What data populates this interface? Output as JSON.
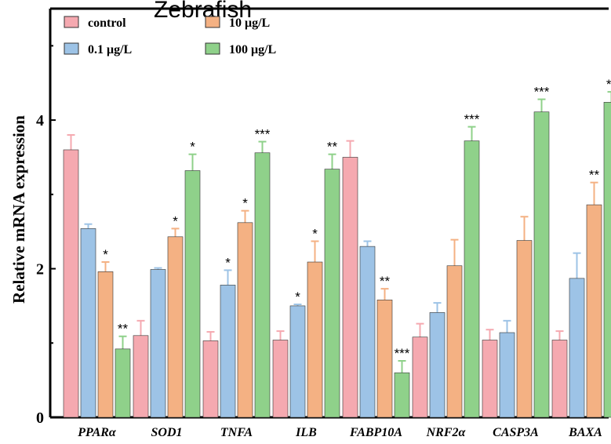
{
  "chart_data": {
    "type": "bar",
    "title": "Zebrafish",
    "ylabel": "Relative mRNA expression",
    "xlabel": "",
    "ylim": [
      0,
      5.5
    ],
    "yticks": [
      0,
      2,
      4
    ],
    "ytick_labels": [
      "0",
      "2",
      "4"
    ],
    "categories": [
      "PPARα",
      "SOD1",
      "TNFA",
      "ILB",
      "FABP10A",
      "NRF2α",
      "CASP3A",
      "BAXA"
    ],
    "series": [
      {
        "name": "control",
        "color": "#F5A9B0",
        "values": [
          3.6,
          1.1,
          1.03,
          1.04,
          3.5,
          1.08,
          1.04,
          1.04
        ],
        "errors": [
          0.2,
          0.2,
          0.12,
          0.12,
          0.22,
          0.18,
          0.14,
          0.12
        ],
        "sig": [
          "",
          "",
          "",
          "",
          "",
          "",
          "",
          ""
        ]
      },
      {
        "name": "0.1 μg/L",
        "color": "#9DC3E6",
        "values": [
          2.54,
          1.99,
          1.78,
          1.5,
          2.3,
          1.41,
          1.14,
          1.87
        ],
        "errors": [
          0.06,
          0.02,
          0.2,
          0.02,
          0.07,
          0.13,
          0.16,
          0.34
        ],
        "sig": [
          "",
          "",
          "*",
          "*",
          "",
          "",
          "",
          ""
        ]
      },
      {
        "name": "10 μg/L",
        "color": "#F4B183",
        "values": [
          1.96,
          2.43,
          2.62,
          2.09,
          1.58,
          2.04,
          2.38,
          2.86
        ],
        "errors": [
          0.13,
          0.11,
          0.16,
          0.28,
          0.15,
          0.35,
          0.32,
          0.3
        ],
        "sig": [
          "*",
          "*",
          "*",
          "*",
          "**",
          "",
          "",
          "**"
        ]
      },
      {
        "name": "100 μg/L",
        "color": "#8FD18A",
        "values": [
          0.92,
          3.32,
          3.56,
          3.34,
          0.6,
          3.72,
          4.11,
          4.24
        ],
        "errors": [
          0.17,
          0.22,
          0.15,
          0.2,
          0.16,
          0.19,
          0.17,
          0.14
        ],
        "sig": [
          "**",
          "*",
          "***",
          "**",
          "***",
          "***",
          "***",
          "**"
        ]
      }
    ],
    "legend_position": "top-left",
    "grid": false
  }
}
